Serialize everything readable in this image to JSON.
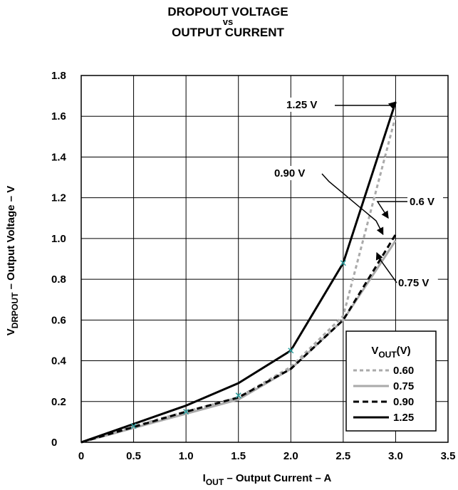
{
  "chart_data": {
    "type": "line",
    "title_lines": [
      "DROPOUT VOLTAGE",
      "vs",
      "OUTPUT CURRENT"
    ],
    "xlabel": {
      "main": "I",
      "sub": "OUT",
      "rest": " – Output Current –  A"
    },
    "ylabel": {
      "main": "V",
      "sub": "DRPOUT",
      "rest": " – Output Voltage – V"
    },
    "xlim": [
      0,
      3.5
    ],
    "ylim": [
      0,
      1.8
    ],
    "x_ticks": [
      "0",
      "0.5",
      "1.0",
      "1.5",
      "2.0",
      "2.5",
      "3.0",
      "3.5"
    ],
    "y_ticks": [
      "0",
      "0.2",
      "0.4",
      "0.6",
      "0.8",
      "1.0",
      "1.2",
      "1.4",
      "1.6",
      "1.8"
    ],
    "grid": true,
    "legend": {
      "title_main": "V",
      "title_sub": "OUT",
      "title_rest": "(V)",
      "placement": "bottom-right"
    },
    "x": [
      0,
      0.5,
      1.0,
      1.5,
      2.0,
      2.5,
      3.0
    ],
    "series": [
      {
        "name": "0.60",
        "style": "dotted",
        "color": "#aaaaaa",
        "values": [
          0,
          0.08,
          0.15,
          0.22,
          0.37,
          0.62,
          1.6
        ]
      },
      {
        "name": "0.75",
        "style": "solid",
        "color": "#aaaaaa",
        "values": [
          0,
          0.07,
          0.14,
          0.21,
          0.36,
          0.6,
          0.99
        ]
      },
      {
        "name": "0.90",
        "style": "dashed",
        "color": "#000000",
        "values": [
          0,
          0.075,
          0.15,
          0.22,
          0.36,
          0.6,
          1.02
        ]
      },
      {
        "name": "1.25",
        "style": "solid",
        "color": "#000000",
        "values": [
          0,
          0.09,
          0.18,
          0.29,
          0.45,
          0.88,
          1.67
        ]
      }
    ],
    "markers": {
      "color": "#2a9d9d",
      "points": [
        [
          0.5,
          0.08
        ],
        [
          1.0,
          0.15
        ],
        [
          1.5,
          0.23
        ],
        [
          2.0,
          0.45
        ],
        [
          2.5,
          0.88
        ]
      ]
    },
    "annotations": [
      {
        "text": "1.25 V",
        "target": [
          3.0,
          1.67
        ]
      },
      {
        "text": "0.90 V",
        "target": [
          2.88,
          1.02
        ]
      },
      {
        "text": "0.6 V",
        "target": [
          2.93,
          1.1
        ]
      },
      {
        "text": "0.75 V",
        "target": [
          2.82,
          0.93
        ]
      }
    ]
  }
}
